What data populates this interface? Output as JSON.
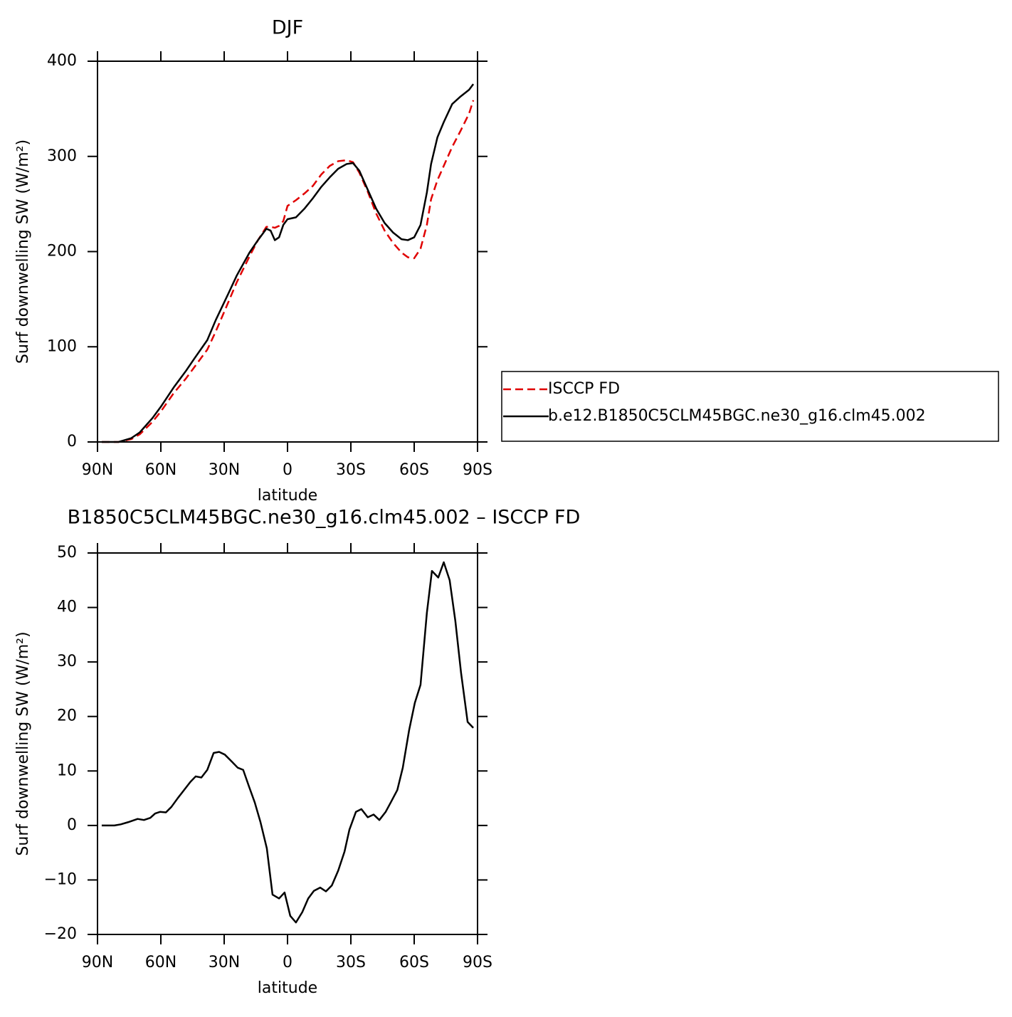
{
  "chart_data": [
    {
      "type": "line",
      "title": "DJF",
      "x_label": "latitude",
      "y_label": "Surf downwelling SW (W/m²)",
      "x": [
        88,
        80,
        74,
        70,
        64,
        60,
        54,
        48,
        44,
        38,
        34,
        28,
        24,
        18,
        14,
        10,
        8,
        6,
        4,
        2,
        0,
        -4,
        -8,
        -12,
        -16,
        -20,
        -24,
        -28,
        -31,
        -34,
        -38,
        -42,
        -46,
        -50,
        -54,
        -57,
        -60,
        -63,
        -66,
        -68,
        -71,
        -74,
        -78,
        -82,
        -86,
        -88
      ],
      "series": [
        {
          "name": "ISCCP FD",
          "color": "#e00000",
          "line_style": "dashed",
          "values": [
            0,
            0,
            3,
            8,
            21,
            32,
            51,
            67,
            79,
            97,
            116,
            147,
            168,
            195,
            212,
            226,
            226,
            225,
            227,
            232,
            248,
            254,
            261,
            269,
            281,
            290,
            295,
            296,
            294,
            283,
            263,
            240,
            222,
            209,
            199,
            194,
            193,
            203,
            228,
            255,
            275,
            290,
            310,
            327,
            345,
            359
          ]
        },
        {
          "name": "b.e12.B1850C5CLM45BGC.ne30_g16.clm45.002",
          "color": "#000000",
          "line_style": "solid",
          "values": [
            0,
            0,
            4,
            10,
            25,
            37,
            57,
            75,
            88,
            107,
            128,
            156,
            175,
            199,
            212,
            224,
            222,
            212,
            215,
            228,
            234,
            236,
            245,
            256,
            268,
            278,
            287,
            292,
            293,
            285,
            265,
            245,
            230,
            220,
            213,
            212,
            215,
            228,
            262,
            292,
            320,
            336,
            355,
            363,
            370,
            376
          ]
        }
      ],
      "xlim": [
        90,
        -90
      ],
      "xticks": [
        {
          "value": 90,
          "label": "90N"
        },
        {
          "value": 60,
          "label": "60N"
        },
        {
          "value": 30,
          "label": "30N"
        },
        0,
        {
          "value": -30,
          "label": "30S"
        },
        {
          "value": -60,
          "label": "60S"
        },
        {
          "value": -90,
          "label": "90S"
        }
      ],
      "ylim": [
        0,
        400
      ],
      "yticks": [
        0,
        100,
        200,
        300,
        400
      ],
      "legend": "right"
    },
    {
      "type": "line",
      "title": "B1850C5CLM45BGC.ne30_g16.clm45.002 – ISCCP FD",
      "x_label": "latitude",
      "y_label": "Surf downwelling SW (W/m²)",
      "x": [
        88,
        82,
        79,
        75.5,
        71,
        68,
        65,
        62.7,
        60.3,
        57.6,
        55,
        52,
        49,
        46,
        43.5,
        40.8,
        38,
        35,
        32.4,
        29.7,
        26.6,
        23.6,
        21,
        18.2,
        15.5,
        12.8,
        9.8,
        7.1,
        4,
        1.4,
        -1.3,
        -4,
        -7,
        -9.8,
        -12.5,
        -15.5,
        -18.2,
        -21,
        -24,
        -27,
        -29.3,
        -32.4,
        -35,
        -38,
        -40.8,
        -43.5,
        -46.5,
        -49,
        -52,
        -54.6,
        -57.6,
        -60.3,
        -63,
        -66,
        -68.4,
        -71.4,
        -74,
        -76.8,
        -79.5,
        -82.2,
        -85.3,
        -88
      ],
      "values": [
        0,
        0,
        0.2,
        0.6,
        1.2,
        1.0,
        1.4,
        2.2,
        2.5,
        2.4,
        3.4,
        5,
        6.5,
        8,
        9,
        8.8,
        10.2,
        13.3,
        13.5,
        13,
        11.8,
        10.6,
        10.2,
        7.1,
        4.2,
        0.6,
        -4.2,
        -12.7,
        -13.4,
        -12.3,
        -16.6,
        -17.8,
        -15.9,
        -13.4,
        -12.0,
        -11.4,
        -12.1,
        -11,
        -8.3,
        -4.8,
        -0.8,
        2.5,
        3,
        1.5,
        2,
        1.0,
        2.5,
        4.3,
        6.5,
        10.6,
        17.5,
        22.5,
        25.8,
        39,
        46.7,
        45.5,
        48.3,
        45,
        37.5,
        28,
        19,
        17.9
      ],
      "color": "#000000",
      "xlim": [
        90,
        -90
      ],
      "xticks": [
        {
          "value": 90,
          "label": "90N"
        },
        {
          "value": 60,
          "label": "60N"
        },
        {
          "value": 30,
          "label": "30N"
        },
        0,
        {
          "value": -30,
          "label": "30S"
        },
        {
          "value": -60,
          "label": "60S"
        },
        {
          "value": -90,
          "label": "90S"
        }
      ],
      "ylim": [
        -20,
        50
      ],
      "yticks": [
        {
          "value": -20,
          "label": "−20"
        },
        {
          "value": -10,
          "label": "−10"
        },
        0,
        10,
        20,
        30,
        40,
        50
      ]
    }
  ]
}
